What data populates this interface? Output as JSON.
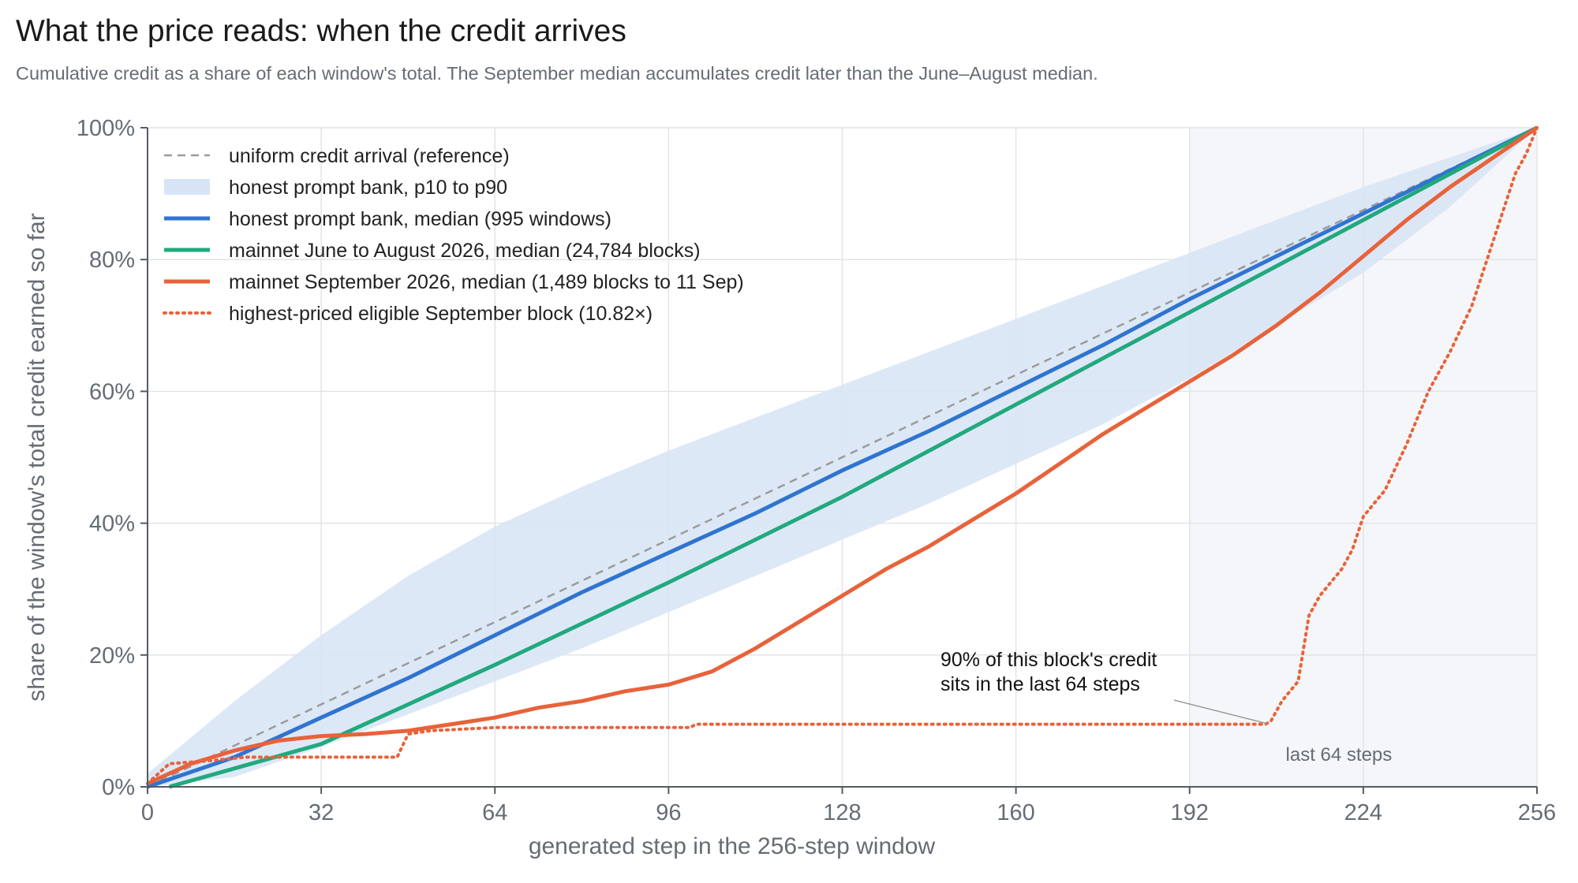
{
  "chart_data": {
    "type": "line",
    "title": "What the price reads: when the credit arrives",
    "subtitle": "Cumulative credit as a share of each window's total. The September median accumulates credit later than the June–August median.",
    "xlabel": "generated step in the 256-step window",
    "ylabel": "share of the window's total credit earned so far",
    "xlim": [
      0,
      256
    ],
    "ylim": [
      0,
      100
    ],
    "x_ticks": [
      0,
      32,
      64,
      96,
      128,
      160,
      192,
      224,
      256
    ],
    "y_ticks": [
      0,
      20,
      40,
      60,
      80,
      100
    ],
    "y_tick_labels": [
      "0%",
      "20%",
      "40%",
      "60%",
      "80%",
      "100%"
    ],
    "grid": true,
    "legend_position": "top-left",
    "shaded_region": {
      "x_start": 192,
      "x_end": 256,
      "label": "last 64 steps",
      "color": "#f4f6f9"
    },
    "annotation": {
      "text_lines": [
        "90% of this block's credit",
        "sits in the last 64 steps"
      ],
      "point": [
        207,
        9.8
      ]
    },
    "band": {
      "name": "honest prompt bank, p10 to p90",
      "color": "#d7e4f6",
      "x": [
        0,
        16,
        32,
        48,
        64,
        80,
        96,
        112,
        128,
        144,
        160,
        176,
        192,
        208,
        224,
        240,
        256
      ],
      "lower": [
        0,
        1.5,
        6,
        11,
        16,
        21,
        26.5,
        32,
        37.5,
        43,
        49,
        55,
        62,
        70,
        78,
        88,
        100
      ],
      "upper": [
        2,
        13,
        23,
        32,
        39.5,
        45.5,
        51,
        56,
        61,
        66,
        71,
        76,
        81,
        86,
        91,
        95.5,
        100
      ]
    },
    "series": [
      {
        "name": "uniform credit arrival (reference)",
        "color": "#9b9b9b",
        "style": "dashed",
        "x": [
          0,
          256
        ],
        "y": [
          0,
          100
        ]
      },
      {
        "name": "honest prompt bank, median (995 windows)",
        "color": "#2f74d0",
        "style": "solid",
        "x": [
          0,
          16,
          32,
          48,
          64,
          80,
          96,
          112,
          128,
          144,
          160,
          176,
          192,
          208,
          224,
          240,
          256
        ],
        "y": [
          0,
          4.5,
          10.5,
          16.5,
          23,
          29.5,
          35.5,
          41.5,
          48,
          54,
          60.5,
          67,
          74,
          80.5,
          87,
          93.5,
          100
        ]
      },
      {
        "name": "mainnet June to August 2026, median (24,784 blocks)",
        "color": "#21a97d",
        "style": "solid",
        "x": [
          4,
          32,
          64,
          96,
          128,
          160,
          192,
          224,
          256
        ],
        "y": [
          0,
          6.5,
          18.5,
          31,
          44,
          58,
          72,
          86,
          100
        ]
      },
      {
        "name": "mainnet September 2026, median (1,489 blocks to 11 Sep)",
        "color": "#e8623a",
        "style": "solid",
        "x": [
          0,
          8,
          16,
          24,
          32,
          40,
          48,
          56,
          64,
          72,
          80,
          88,
          96,
          104,
          112,
          120,
          128,
          136,
          144,
          152,
          160,
          168,
          176,
          184,
          192,
          200,
          208,
          216,
          224,
          232,
          240,
          248,
          256
        ],
        "y": [
          0.5,
          3.5,
          5.5,
          7,
          7.7,
          8,
          8.5,
          9.5,
          10.5,
          12,
          13,
          14.5,
          15.5,
          17.5,
          21,
          25,
          29,
          33,
          36.5,
          40.5,
          44.5,
          49,
          53.5,
          57.5,
          61.5,
          65.5,
          70,
          75,
          80.5,
          86,
          91,
          95.5,
          100
        ]
      },
      {
        "name": "highest-priced eligible September block (10.82×)",
        "color": "#e8623a",
        "style": "dotted",
        "x": [
          0,
          4,
          12,
          18,
          24,
          46,
          48,
          52,
          64,
          100,
          101,
          160,
          206,
          207,
          209,
          212,
          214,
          216,
          220,
          222,
          224,
          226,
          228,
          232,
          236,
          240,
          244,
          248,
          252,
          254,
          256
        ],
        "y": [
          0.5,
          3.5,
          4,
          4.5,
          4.5,
          4.5,
          8,
          8.5,
          9,
          9,
          9.5,
          9.5,
          9.5,
          10,
          13,
          16,
          26,
          29,
          33,
          36,
          41,
          43,
          45,
          52,
          60,
          66,
          73,
          83,
          93,
          96,
          100
        ]
      }
    ]
  }
}
